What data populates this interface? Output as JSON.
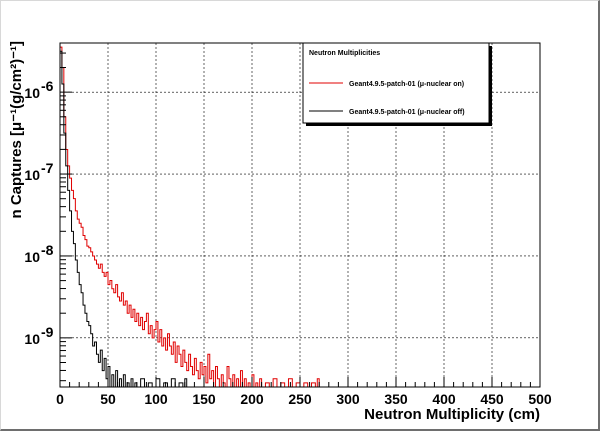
{
  "chart_data": {
    "type": "line",
    "title": "",
    "xlabel": "Neutron Multiplicity (cm)",
    "ylabel": "n Captures [μ⁻¹(g/cm²)⁻¹]",
    "xlim": [
      0,
      500
    ],
    "ylim_log10": [
      -9.6,
      -5.4
    ],
    "log_y": true,
    "grid": true,
    "x_ticks": [
      0,
      50,
      100,
      150,
      200,
      250,
      300,
      350,
      400,
      450,
      500
    ],
    "y_ticks": [
      {
        "label": "10",
        "exp": "-9",
        "log10": -9
      },
      {
        "label": "10",
        "exp": "-8",
        "log10": -8
      },
      {
        "label": "10",
        "exp": "-7",
        "log10": -7
      },
      {
        "label": "10",
        "exp": "-6",
        "log10": -6
      }
    ],
    "legend": {
      "title": "Neutron Multiplicities",
      "placement": "top-right"
    },
    "series": [
      {
        "name": "Geant4.9.5-patch-01 (μ-nuclear on)",
        "color": "#e00000",
        "points": [
          [
            0,
            -5.45
          ],
          [
            2,
            -5.7
          ],
          [
            4,
            -6.3
          ],
          [
            6,
            -6.7
          ],
          [
            8,
            -6.9
          ],
          [
            10,
            -7.05
          ],
          [
            12,
            -7.2
          ],
          [
            14,
            -7.3
          ],
          [
            16,
            -7.45
          ],
          [
            18,
            -7.55
          ],
          [
            20,
            -7.6
          ],
          [
            22,
            -7.65
          ],
          [
            24,
            -7.75
          ],
          [
            26,
            -7.8
          ],
          [
            28,
            -7.88
          ],
          [
            30,
            -7.9
          ],
          [
            32,
            -7.95
          ],
          [
            34,
            -8.0
          ],
          [
            36,
            -8.05
          ],
          [
            38,
            -8.1
          ],
          [
            40,
            -8.15
          ],
          [
            42,
            -8.1
          ],
          [
            44,
            -8.2
          ],
          [
            46,
            -8.25
          ],
          [
            48,
            -8.2
          ],
          [
            50,
            -8.35
          ],
          [
            52,
            -8.3
          ],
          [
            54,
            -8.4
          ],
          [
            56,
            -8.45
          ],
          [
            58,
            -8.35
          ],
          [
            60,
            -8.5
          ],
          [
            62,
            -8.55
          ],
          [
            64,
            -8.45
          ],
          [
            66,
            -8.6
          ],
          [
            68,
            -8.55
          ],
          [
            70,
            -8.7
          ],
          [
            72,
            -8.6
          ],
          [
            74,
            -8.75
          ],
          [
            76,
            -8.65
          ],
          [
            78,
            -8.8
          ],
          [
            80,
            -8.7
          ],
          [
            82,
            -8.85
          ],
          [
            84,
            -8.75
          ],
          [
            86,
            -8.9
          ],
          [
            88,
            -8.8
          ],
          [
            90,
            -8.7
          ],
          [
            92,
            -8.95
          ],
          [
            94,
            -8.85
          ],
          [
            96,
            -9.0
          ],
          [
            98,
            -8.9
          ],
          [
            100,
            -8.8
          ],
          [
            102,
            -9.05
          ],
          [
            104,
            -8.9
          ],
          [
            106,
            -9.1
          ],
          [
            108,
            -9.0
          ],
          [
            110,
            -9.15
          ],
          [
            112,
            -8.95
          ],
          [
            114,
            -9.1
          ],
          [
            116,
            -9.2
          ],
          [
            118,
            -9.05
          ],
          [
            120,
            -9.3
          ],
          [
            122,
            -9.1
          ],
          [
            124,
            -9.2
          ],
          [
            126,
            -9.35
          ],
          [
            128,
            -9.15
          ],
          [
            130,
            -9.3
          ],
          [
            132,
            -9.4
          ],
          [
            134,
            -9.2
          ],
          [
            136,
            -9.35
          ],
          [
            138,
            -9.45
          ],
          [
            140,
            -9.25
          ],
          [
            142,
            -9.4
          ],
          [
            144,
            -9.5
          ],
          [
            146,
            -9.3
          ],
          [
            148,
            -9.45
          ],
          [
            150,
            -9.35
          ],
          [
            152,
            -9.55
          ],
          [
            154,
            -9.2
          ],
          [
            156,
            -9.5
          ],
          [
            158,
            -9.4
          ],
          [
            160,
            -9.6
          ],
          [
            162,
            -9.35
          ],
          [
            164,
            -9.5
          ],
          [
            166,
            -9.6
          ],
          [
            168,
            -9.45
          ],
          [
            170,
            -9.55
          ],
          [
            172,
            -9.6
          ],
          [
            174,
            -9.35
          ],
          [
            176,
            -9.5
          ],
          [
            178,
            -9.6
          ],
          [
            180,
            -9.45
          ],
          [
            182,
            -9.6
          ],
          [
            184,
            -9.5
          ],
          [
            186,
            -9.6
          ],
          [
            188,
            -9.4
          ],
          [
            190,
            -9.6
          ],
          [
            192,
            -9.5
          ],
          [
            194,
            -9.6
          ],
          [
            196,
            -9.55
          ],
          [
            198,
            -9.6
          ],
          [
            200,
            -9.45
          ],
          [
            202,
            -9.6
          ],
          [
            204,
            -9.55
          ],
          [
            206,
            -9.6
          ],
          [
            208,
            -9.5
          ],
          [
            210,
            -9.6
          ],
          [
            214,
            -9.55
          ],
          [
            218,
            -9.6
          ],
          [
            222,
            -9.5
          ],
          [
            226,
            -9.6
          ],
          [
            230,
            -9.55
          ],
          [
            234,
            -9.6
          ],
          [
            238,
            -9.5
          ],
          [
            242,
            -9.6
          ],
          [
            246,
            -9.55
          ],
          [
            250,
            -9.6
          ],
          [
            254,
            -9.55
          ],
          [
            258,
            -9.6
          ],
          [
            262,
            -9.55
          ],
          [
            266,
            -9.6
          ],
          [
            268,
            -9.5
          ],
          [
            270,
            -9.6
          ]
        ]
      },
      {
        "name": "Geant4.9.5-patch-01 (μ-nuclear off)",
        "color": "#000000",
        "points": [
          [
            0,
            -5.5
          ],
          [
            2,
            -5.9
          ],
          [
            4,
            -6.5
          ],
          [
            6,
            -6.9
          ],
          [
            8,
            -7.2
          ],
          [
            10,
            -7.45
          ],
          [
            12,
            -7.7
          ],
          [
            14,
            -7.85
          ],
          [
            16,
            -8.05
          ],
          [
            18,
            -8.2
          ],
          [
            20,
            -8.35
          ],
          [
            22,
            -8.45
          ],
          [
            24,
            -8.6
          ],
          [
            26,
            -8.7
          ],
          [
            28,
            -8.8
          ],
          [
            30,
            -8.85
          ],
          [
            32,
            -8.95
          ],
          [
            34,
            -9.1
          ],
          [
            36,
            -9.05
          ],
          [
            38,
            -9.2
          ],
          [
            40,
            -9.3
          ],
          [
            42,
            -9.15
          ],
          [
            44,
            -9.4
          ],
          [
            46,
            -9.25
          ],
          [
            48,
            -9.5
          ],
          [
            50,
            -9.35
          ],
          [
            52,
            -9.6
          ],
          [
            54,
            -9.45
          ],
          [
            56,
            -9.6
          ],
          [
            58,
            -9.4
          ],
          [
            60,
            -9.6
          ],
          [
            62,
            -9.5
          ],
          [
            64,
            -9.6
          ],
          [
            66,
            -9.45
          ],
          [
            68,
            -9.6
          ],
          [
            70,
            -9.55
          ],
          [
            72,
            -9.6
          ],
          [
            74,
            -9.5
          ],
          [
            76,
            -9.6
          ],
          [
            78,
            -9.55
          ],
          [
            80,
            -9.6
          ],
          [
            84,
            -9.5
          ],
          [
            88,
            -9.6
          ],
          [
            92,
            -9.55
          ],
          [
            96,
            -9.6
          ],
          [
            100,
            -9.5
          ],
          [
            104,
            -9.6
          ],
          [
            108,
            -9.55
          ],
          [
            112,
            -9.6
          ],
          [
            116,
            -9.5
          ],
          [
            120,
            -9.6
          ],
          [
            124,
            -9.55
          ],
          [
            128,
            -9.6
          ],
          [
            130,
            -9.5
          ],
          [
            132,
            -9.6
          ]
        ]
      }
    ]
  }
}
